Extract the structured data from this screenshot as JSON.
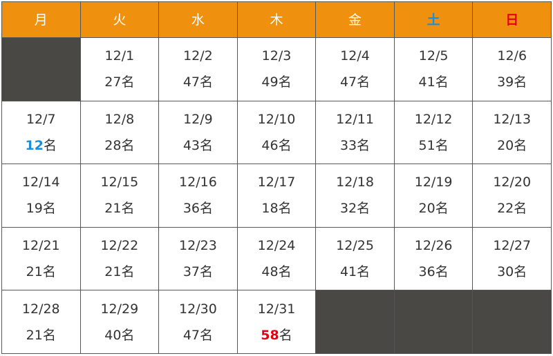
{
  "weekdays": [
    {
      "label": "月",
      "style": "normal"
    },
    {
      "label": "火",
      "style": "normal"
    },
    {
      "label": "水",
      "style": "normal"
    },
    {
      "label": "木",
      "style": "normal"
    },
    {
      "label": "金",
      "style": "normal"
    },
    {
      "label": "土",
      "style": "sat"
    },
    {
      "label": "日",
      "style": "sun"
    }
  ],
  "unit": "名",
  "colors": {
    "header_bg": "#f0900f",
    "empty_bg": "#4a4845",
    "saturday": "#1a8ed9",
    "sunday": "#e60012",
    "min_highlight": "#1a8ed9",
    "max_highlight": "#e60012"
  },
  "weeks": [
    [
      null,
      {
        "date": "12/1",
        "count": "27"
      },
      {
        "date": "12/2",
        "count": "47"
      },
      {
        "date": "12/3",
        "count": "49"
      },
      {
        "date": "12/4",
        "count": "47"
      },
      {
        "date": "12/5",
        "count": "41"
      },
      {
        "date": "12/6",
        "count": "39"
      }
    ],
    [
      {
        "date": "12/7",
        "count": "12",
        "highlight": "low"
      },
      {
        "date": "12/8",
        "count": "28"
      },
      {
        "date": "12/9",
        "count": "43"
      },
      {
        "date": "12/10",
        "count": "46"
      },
      {
        "date": "12/11",
        "count": "33"
      },
      {
        "date": "12/12",
        "count": "51"
      },
      {
        "date": "12/13",
        "count": "20"
      }
    ],
    [
      {
        "date": "12/14",
        "count": "19"
      },
      {
        "date": "12/15",
        "count": "21"
      },
      {
        "date": "12/16",
        "count": "36"
      },
      {
        "date": "12/17",
        "count": "18"
      },
      {
        "date": "12/18",
        "count": "32"
      },
      {
        "date": "12/19",
        "count": "20"
      },
      {
        "date": "12/20",
        "count": "22"
      }
    ],
    [
      {
        "date": "12/21",
        "count": "21"
      },
      {
        "date": "12/22",
        "count": "21"
      },
      {
        "date": "12/23",
        "count": "37"
      },
      {
        "date": "12/24",
        "count": "48"
      },
      {
        "date": "12/25",
        "count": "41"
      },
      {
        "date": "12/26",
        "count": "36"
      },
      {
        "date": "12/27",
        "count": "30"
      }
    ],
    [
      {
        "date": "12/28",
        "count": "21"
      },
      {
        "date": "12/29",
        "count": "40"
      },
      {
        "date": "12/30",
        "count": "47"
      },
      {
        "date": "12/31",
        "count": "58",
        "highlight": "high"
      },
      null,
      null,
      null
    ]
  ]
}
